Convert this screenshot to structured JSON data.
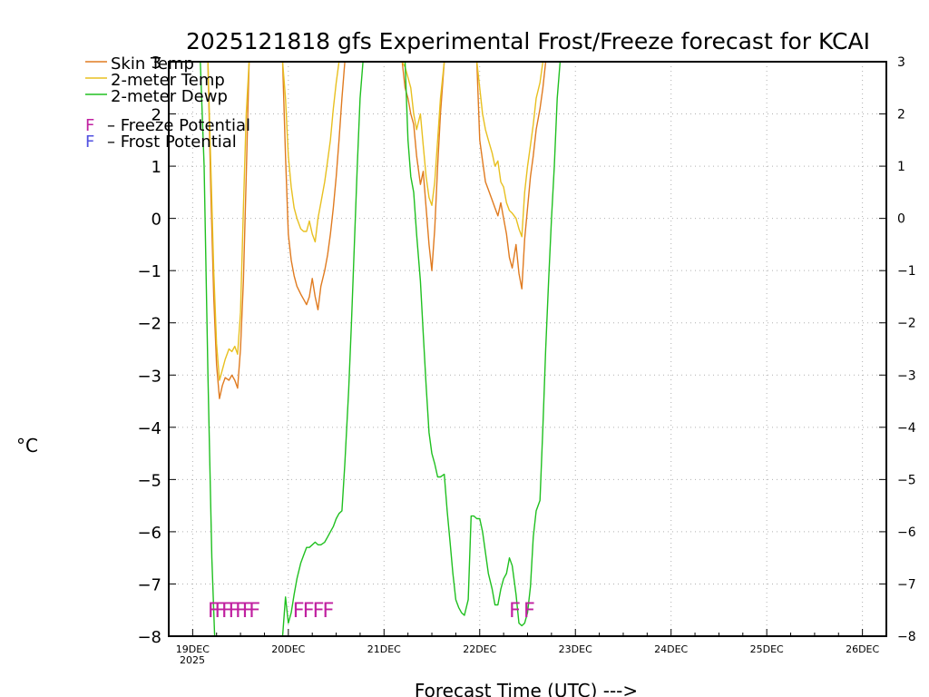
{
  "colors": {
    "skin": "#e07b20",
    "temp2m": "#e8c020",
    "dewp2m": "#20c020",
    "freeze": "#c020a0",
    "frost": "#5050e0",
    "grid": "#b0b0b0"
  },
  "chart_data": {
    "type": "line",
    "title": "2025121818 gfs Experimental Frost/Freeze forecast for KCAI",
    "xlabel": "Forecast Time (UTC) --->",
    "ylabel": "°C",
    "ylim": [
      -8,
      3
    ],
    "xlim_days": [
      -0.25,
      7.25
    ],
    "yticks": [
      "−8",
      "−7",
      "−6",
      "−5",
      "−4",
      "−3",
      "−2",
      "−1",
      "0",
      "1",
      "2",
      "3"
    ],
    "yticks_right": [
      "−8",
      "−7",
      "−6",
      "−5",
      "−4",
      "−3",
      "−2",
      "−1",
      "0",
      "1",
      "2",
      "3"
    ],
    "xticks": [
      "19DEC",
      "20DEC",
      "21DEC",
      "22DEC",
      "23DEC",
      "24DEC",
      "25DEC",
      "26DEC"
    ],
    "xtick_year": "2025",
    "legend": {
      "items": [
        "Skin Temp",
        "2-meter Temp",
        "2-meter Dewp"
      ],
      "freeze_letter": "F",
      "freeze_text": "– Freeze Potential",
      "frost_letter": "F",
      "frost_text": "– Frost Potential"
    },
    "series": [
      {
        "name": "Skin Temp",
        "key": "skin",
        "x": [
          0.16,
          0.19,
          0.22,
          0.25,
          0.28,
          0.31,
          0.34,
          0.38,
          0.41,
          0.44,
          0.47,
          0.5,
          0.53,
          0.56,
          0.59,
          0.62,
          0.66,
          0.69,
          0.94,
          0.97,
          1.0,
          1.03,
          1.06,
          1.09,
          1.13,
          1.16,
          1.19,
          1.22,
          1.25,
          1.28,
          1.31,
          1.34,
          1.38,
          1.41,
          1.44,
          1.47,
          1.5,
          1.53,
          1.56,
          1.59,
          1.63,
          1.66,
          1.69,
          2.19,
          2.22,
          2.25,
          2.28,
          2.31,
          2.34,
          2.38,
          2.41,
          2.44,
          2.47,
          2.5,
          2.53,
          2.56,
          2.59,
          2.63,
          2.66,
          2.69,
          2.72,
          2.75,
          2.94,
          2.97,
          3.0,
          3.03,
          3.06,
          3.09,
          3.13,
          3.16,
          3.19,
          3.22,
          3.25,
          3.28,
          3.31,
          3.34,
          3.38,
          3.41,
          3.44,
          3.47,
          3.5,
          3.53,
          3.56,
          3.59,
          3.63,
          3.66,
          3.69,
          3.72,
          3.75,
          3.78,
          3.81,
          3.84,
          3.87
        ],
        "y": [
          3.0,
          0.5,
          -1.5,
          -2.8,
          -3.45,
          -3.2,
          -3.05,
          -3.1,
          -3.0,
          -3.1,
          -3.25,
          -2.5,
          -1.2,
          0.8,
          3.0,
          3.0,
          3.0,
          3.0,
          3.0,
          1.2,
          -0.3,
          -0.8,
          -1.1,
          -1.3,
          -1.45,
          -1.55,
          -1.65,
          -1.5,
          -1.15,
          -1.5,
          -1.75,
          -1.3,
          -1.0,
          -0.7,
          -0.3,
          0.2,
          0.8,
          1.5,
          2.3,
          3.0,
          3.0,
          3.0,
          3.0,
          3.0,
          2.5,
          2.3,
          2.0,
          1.8,
          1.2,
          0.65,
          0.9,
          0.2,
          -0.5,
          -1.0,
          -0.2,
          1.0,
          2.0,
          3.0,
          3.0,
          3.0,
          3.0,
          3.0,
          3.0,
          3.0,
          1.5,
          1.1,
          0.7,
          0.55,
          0.35,
          0.2,
          0.05,
          0.3,
          0.0,
          -0.3,
          -0.75,
          -0.95,
          -0.5,
          -1.05,
          -1.35,
          -0.4,
          0.2,
          0.8,
          1.2,
          1.7,
          2.1,
          2.5,
          3.0,
          3.0,
          3.0,
          3.0,
          3.0,
          3.0,
          3.0
        ]
      },
      {
        "name": "2-meter Temp",
        "key": "temp2m",
        "x": [
          0.16,
          0.19,
          0.22,
          0.25,
          0.28,
          0.31,
          0.34,
          0.38,
          0.41,
          0.44,
          0.47,
          0.5,
          0.53,
          0.56,
          0.59,
          0.62,
          0.66,
          0.69,
          0.94,
          0.97,
          1.0,
          1.03,
          1.06,
          1.09,
          1.13,
          1.16,
          1.19,
          1.22,
          1.25,
          1.28,
          1.31,
          1.34,
          1.38,
          1.41,
          1.44,
          1.47,
          1.5,
          1.53,
          1.56,
          1.59,
          1.63,
          1.66,
          1.69,
          2.19,
          2.22,
          2.25,
          2.28,
          2.31,
          2.34,
          2.38,
          2.41,
          2.44,
          2.47,
          2.5,
          2.53,
          2.56,
          2.59,
          2.63,
          2.66,
          2.69,
          2.72,
          2.75,
          2.94,
          2.97,
          3.0,
          3.03,
          3.06,
          3.09,
          3.13,
          3.16,
          3.19,
          3.22,
          3.25,
          3.28,
          3.31,
          3.34,
          3.38,
          3.41,
          3.44,
          3.47,
          3.5,
          3.53,
          3.56,
          3.59,
          3.63,
          3.66,
          3.69,
          3.72,
          3.75,
          3.78,
          3.81,
          3.84,
          3.87
        ],
        "y": [
          3.0,
          1.0,
          -1.0,
          -2.4,
          -3.1,
          -2.9,
          -2.7,
          -2.5,
          -2.55,
          -2.45,
          -2.6,
          -1.8,
          0.2,
          2.0,
          3.0,
          3.0,
          3.0,
          3.0,
          3.0,
          2.3,
          1.2,
          0.6,
          0.2,
          0.0,
          -0.2,
          -0.25,
          -0.25,
          -0.05,
          -0.3,
          -0.45,
          0.0,
          0.3,
          0.7,
          1.1,
          1.5,
          2.1,
          2.6,
          3.0,
          3.0,
          3.0,
          3.0,
          3.0,
          3.0,
          3.0,
          2.9,
          2.7,
          2.5,
          2.0,
          1.7,
          2.0,
          1.4,
          0.8,
          0.4,
          0.25,
          0.7,
          1.5,
          2.3,
          3.0,
          3.0,
          3.0,
          3.0,
          3.0,
          3.0,
          3.0,
          2.5,
          2.0,
          1.7,
          1.5,
          1.25,
          1.0,
          1.1,
          0.7,
          0.6,
          0.3,
          0.15,
          0.1,
          0.0,
          -0.2,
          -0.35,
          0.5,
          1.0,
          1.4,
          1.8,
          2.3,
          2.6,
          3.0,
          3.0,
          3.0,
          3.0,
          3.0,
          3.0,
          3.0,
          3.0
        ]
      },
      {
        "name": "2-meter Dewp",
        "key": "dewp2m",
        "x": [
          0.0,
          0.08,
          0.12,
          0.16,
          0.2,
          0.23,
          0.25,
          0.94,
          0.97,
          1.0,
          1.03,
          1.06,
          1.09,
          1.13,
          1.16,
          1.19,
          1.22,
          1.25,
          1.28,
          1.31,
          1.34,
          1.38,
          1.41,
          1.44,
          1.47,
          1.5,
          1.53,
          1.56,
          1.59,
          1.63,
          1.66,
          1.69,
          1.72,
          1.75,
          1.78,
          1.81,
          1.84,
          1.88,
          1.91,
          1.94,
          1.97,
          2.0,
          2.03,
          2.06,
          2.09,
          2.13,
          2.16,
          2.19,
          2.22,
          2.25,
          2.28,
          2.31,
          2.34,
          2.38,
          2.41,
          2.44,
          2.47,
          2.5,
          2.53,
          2.56,
          2.59,
          2.63,
          2.66,
          2.69,
          2.72,
          2.75,
          2.78,
          2.81,
          2.84,
          2.88,
          2.91,
          2.94,
          2.97,
          3.0,
          3.03,
          3.06,
          3.09,
          3.13,
          3.16,
          3.19,
          3.22,
          3.25,
          3.28,
          3.31,
          3.34,
          3.38,
          3.41,
          3.44,
          3.47,
          3.5,
          3.53,
          3.56,
          3.59,
          3.63,
          3.66,
          3.69,
          3.72,
          3.75,
          3.78,
          3.81,
          3.84,
          3.88,
          3.91,
          3.94,
          3.97,
          4.0,
          4.03,
          4.06,
          4.09,
          4.13,
          4.16,
          4.19,
          4.22,
          4.25
        ],
        "y": [
          3.0,
          3.0,
          1.0,
          -3.0,
          -6.5,
          -8.0,
          -8.0,
          -8.0,
          -7.25,
          -7.75,
          -7.55,
          -7.2,
          -6.9,
          -6.6,
          -6.45,
          -6.3,
          -6.3,
          -6.25,
          -6.2,
          -6.25,
          -6.25,
          -6.2,
          -6.1,
          -6.0,
          -5.9,
          -5.75,
          -5.65,
          -5.6,
          -4.7,
          -3.3,
          -2.0,
          -0.5,
          1.0,
          2.3,
          3.0,
          3.0,
          3.0,
          3.0,
          3.0,
          3.0,
          3.0,
          3.0,
          3.0,
          3.0,
          3.0,
          3.0,
          3.0,
          3.0,
          3.0,
          1.5,
          0.8,
          0.5,
          -0.3,
          -1.2,
          -2.2,
          -3.2,
          -4.1,
          -4.5,
          -4.7,
          -4.95,
          -4.95,
          -4.9,
          -5.6,
          -6.2,
          -6.8,
          -7.3,
          -7.45,
          -7.55,
          -7.6,
          -7.3,
          -5.7,
          -5.7,
          -5.75,
          -5.75,
          -6.0,
          -6.4,
          -6.8,
          -7.1,
          -7.4,
          -7.4,
          -7.1,
          -6.9,
          -6.8,
          -6.5,
          -6.65,
          -7.2,
          -7.75,
          -7.8,
          -7.75,
          -7.55,
          -7.05,
          -6.1,
          -5.6,
          -5.4,
          -4.0,
          -2.5,
          -1.2,
          0.0,
          1.0,
          2.3,
          3.0,
          3.0,
          3.0,
          3.0,
          3.0,
          3.0,
          3.0,
          3.0,
          3.0,
          3.0,
          3.0,
          3.0,
          3.0,
          3.0
        ]
      }
    ],
    "freeze_markers": {
      "letter": "F",
      "y": -7.5,
      "segments": [
        {
          "count": 7,
          "start": 0.22,
          "end": 0.65
        },
        {
          "count": 4,
          "start": 1.11,
          "end": 1.42
        },
        {
          "count": 2,
          "start": 3.37,
          "end": 3.52
        }
      ]
    }
  }
}
